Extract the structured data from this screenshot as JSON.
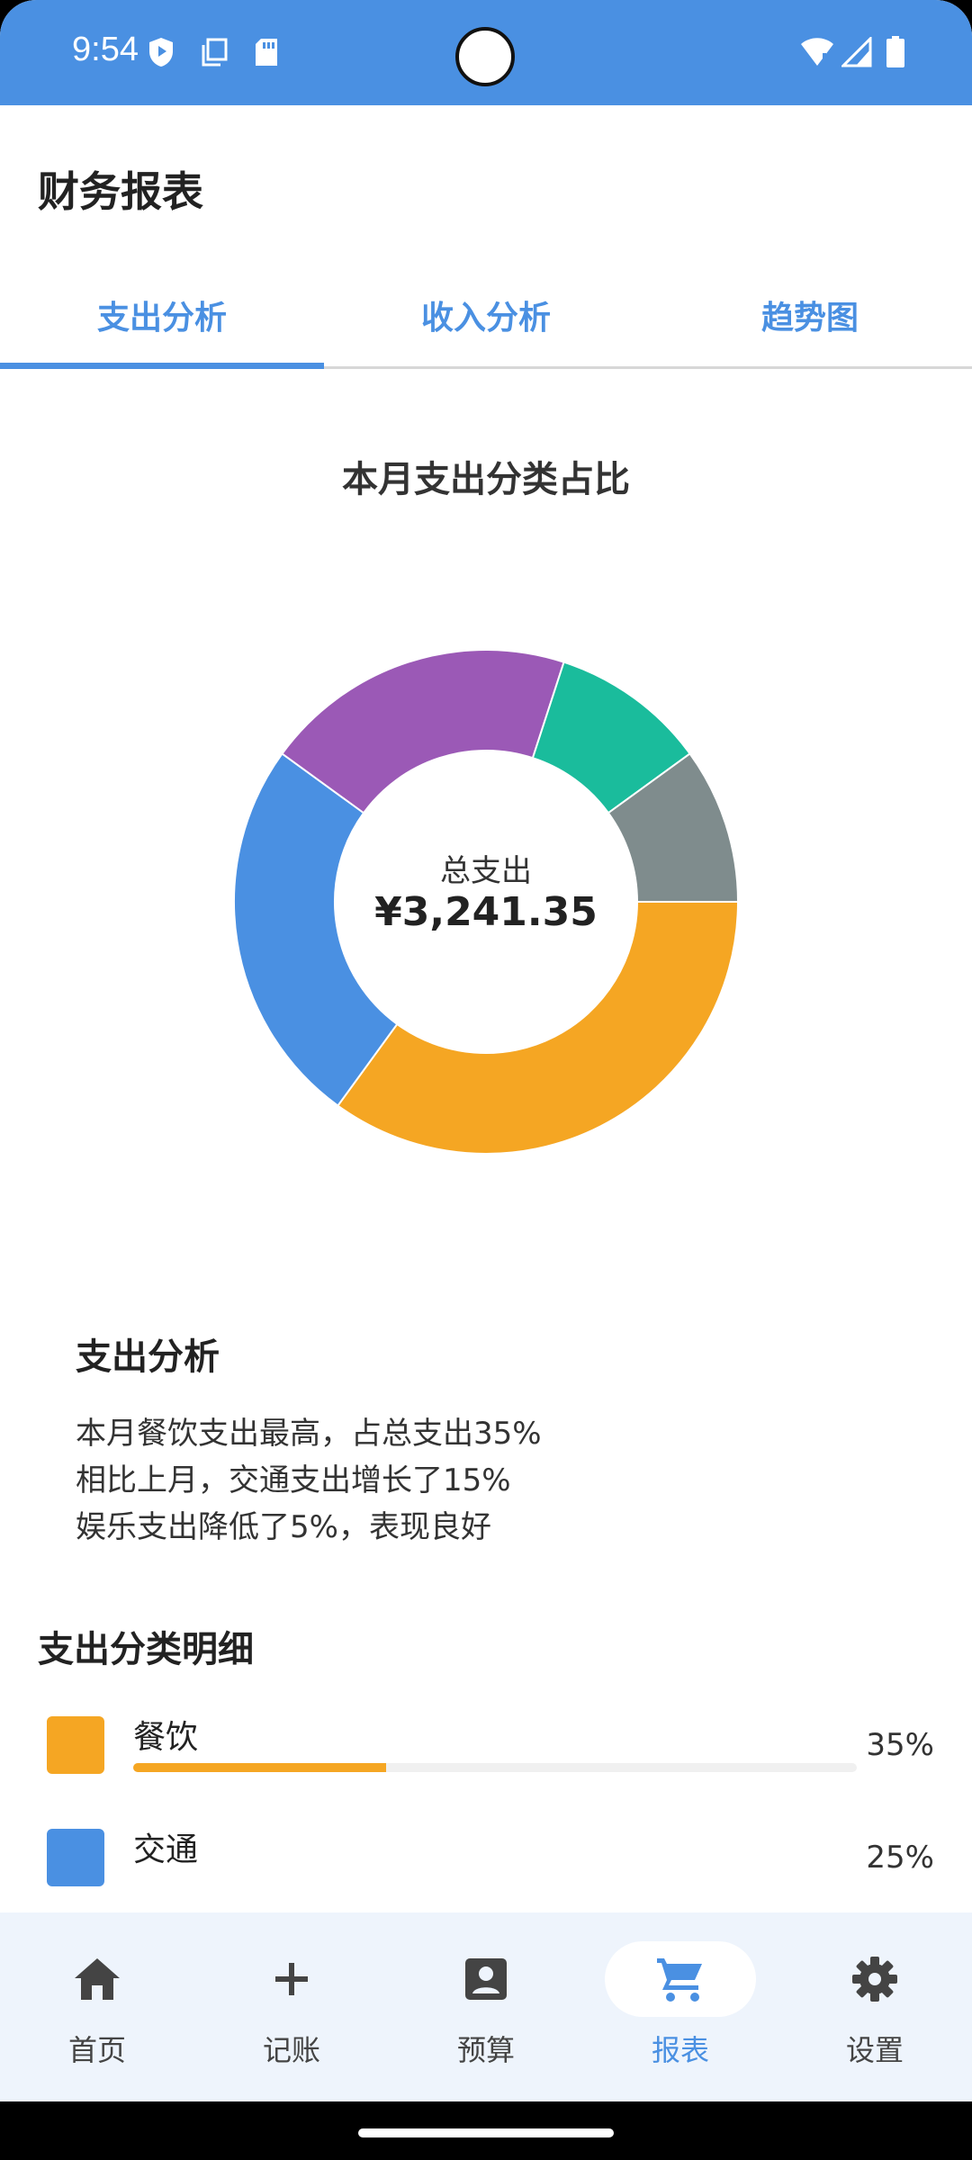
{
  "status": {
    "time": "9:54",
    "icons": [
      "shield-icon",
      "copy-icon",
      "sd-card-icon",
      "wifi-icon",
      "signal-icon",
      "battery-icon"
    ]
  },
  "header": {
    "title": "财务报表"
  },
  "tabs": [
    {
      "label": "支出分析",
      "active": true
    },
    {
      "label": "收入分析",
      "active": false
    },
    {
      "label": "趋势图",
      "active": false
    }
  ],
  "chart": {
    "title": "本月支出分类占比",
    "center_label": "总支出",
    "center_value": "¥3,241.35"
  },
  "chart_data": {
    "type": "pie",
    "title": "本月支出分类占比",
    "slices": [
      {
        "label": "餐饮",
        "value": 35,
        "color": "#f5a623"
      },
      {
        "label": "交通",
        "value": 25,
        "color": "#4a90e2"
      },
      {
        "label": "",
        "value": 20,
        "color": "#9b59b6"
      },
      {
        "label": "",
        "value": 10,
        "color": "#1abc9c"
      },
      {
        "label": "",
        "value": 10,
        "color": "#7f8c8d"
      }
    ]
  },
  "analysis": {
    "title": "支出分析",
    "lines": [
      "本月餐饮支出最高，占总支出35%",
      "相比上月，交通支出增长了15%",
      "娱乐支出降低了5%，表现良好"
    ]
  },
  "details": {
    "title": "支出分类明细",
    "items": [
      {
        "name": "餐饮",
        "percent": "35%",
        "fraction": 0.35,
        "color": "#f5a623",
        "show_bar": true
      },
      {
        "name": "交通",
        "percent": "25%",
        "fraction": 0.25,
        "color": "#4a90e2",
        "show_bar": false
      }
    ]
  },
  "nav": [
    {
      "label": "首页",
      "icon": "home-icon",
      "active": false
    },
    {
      "label": "记账",
      "icon": "plus-icon",
      "active": false
    },
    {
      "label": "预算",
      "icon": "account-box-icon",
      "active": false
    },
    {
      "label": "报表",
      "icon": "cart-icon",
      "active": true
    },
    {
      "label": "设置",
      "icon": "gear-icon",
      "active": false
    }
  ],
  "colors": {
    "primary": "#4a90e2",
    "nav_bg": "#eef4fc"
  }
}
